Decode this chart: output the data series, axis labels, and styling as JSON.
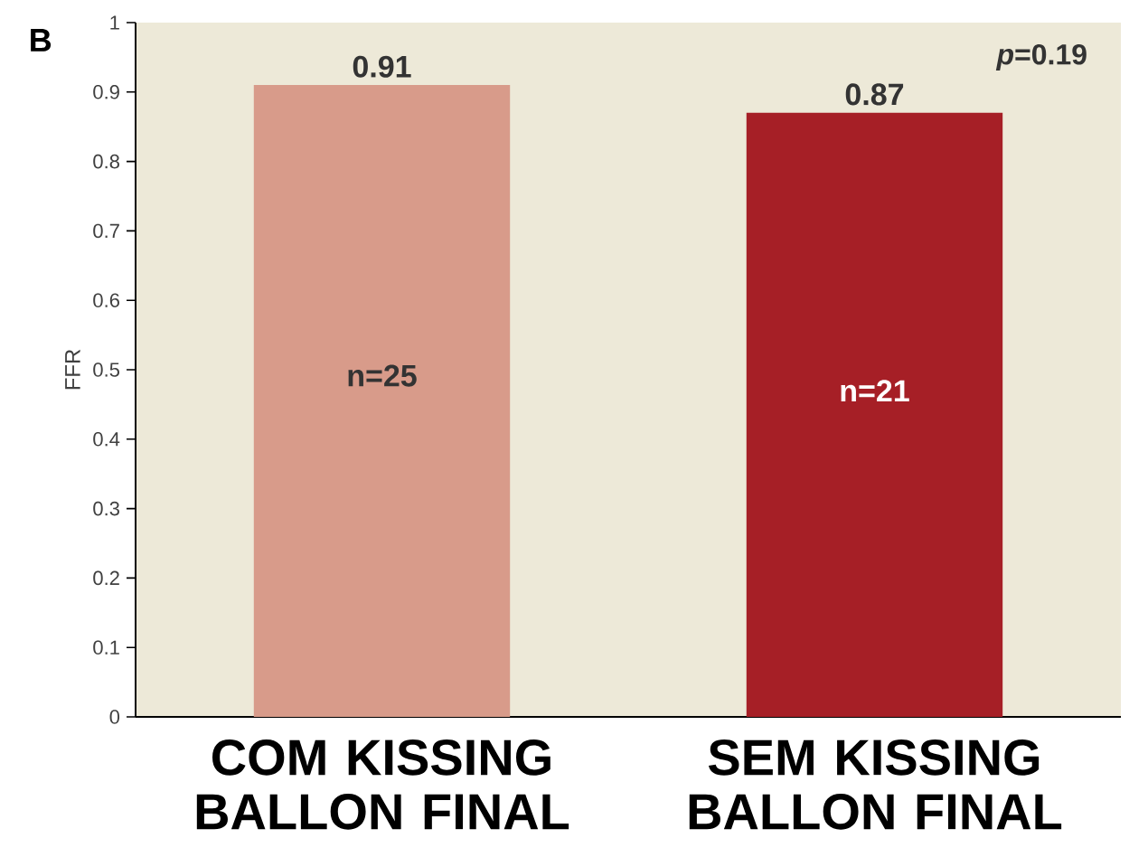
{
  "chart_data": {
    "type": "bar",
    "ylabel": "FFR",
    "categories": [
      "COM KISSING BALLON FINAL",
      "SEM KISSING BALLON FINAL"
    ],
    "values": [
      0.91,
      0.87
    ],
    "colors": [
      "#d89b8a",
      "#a61f26"
    ],
    "data_labels": true,
    "ylim": [
      0,
      1
    ],
    "yticks": [
      0,
      0.1,
      0.2,
      0.3,
      0.4,
      0.5,
      0.6,
      0.7,
      0.8,
      0.9,
      1
    ],
    "annotations": [
      "B",
      "*p*=0.19",
      "n=25",
      "n=21"
    ]
  }
}
